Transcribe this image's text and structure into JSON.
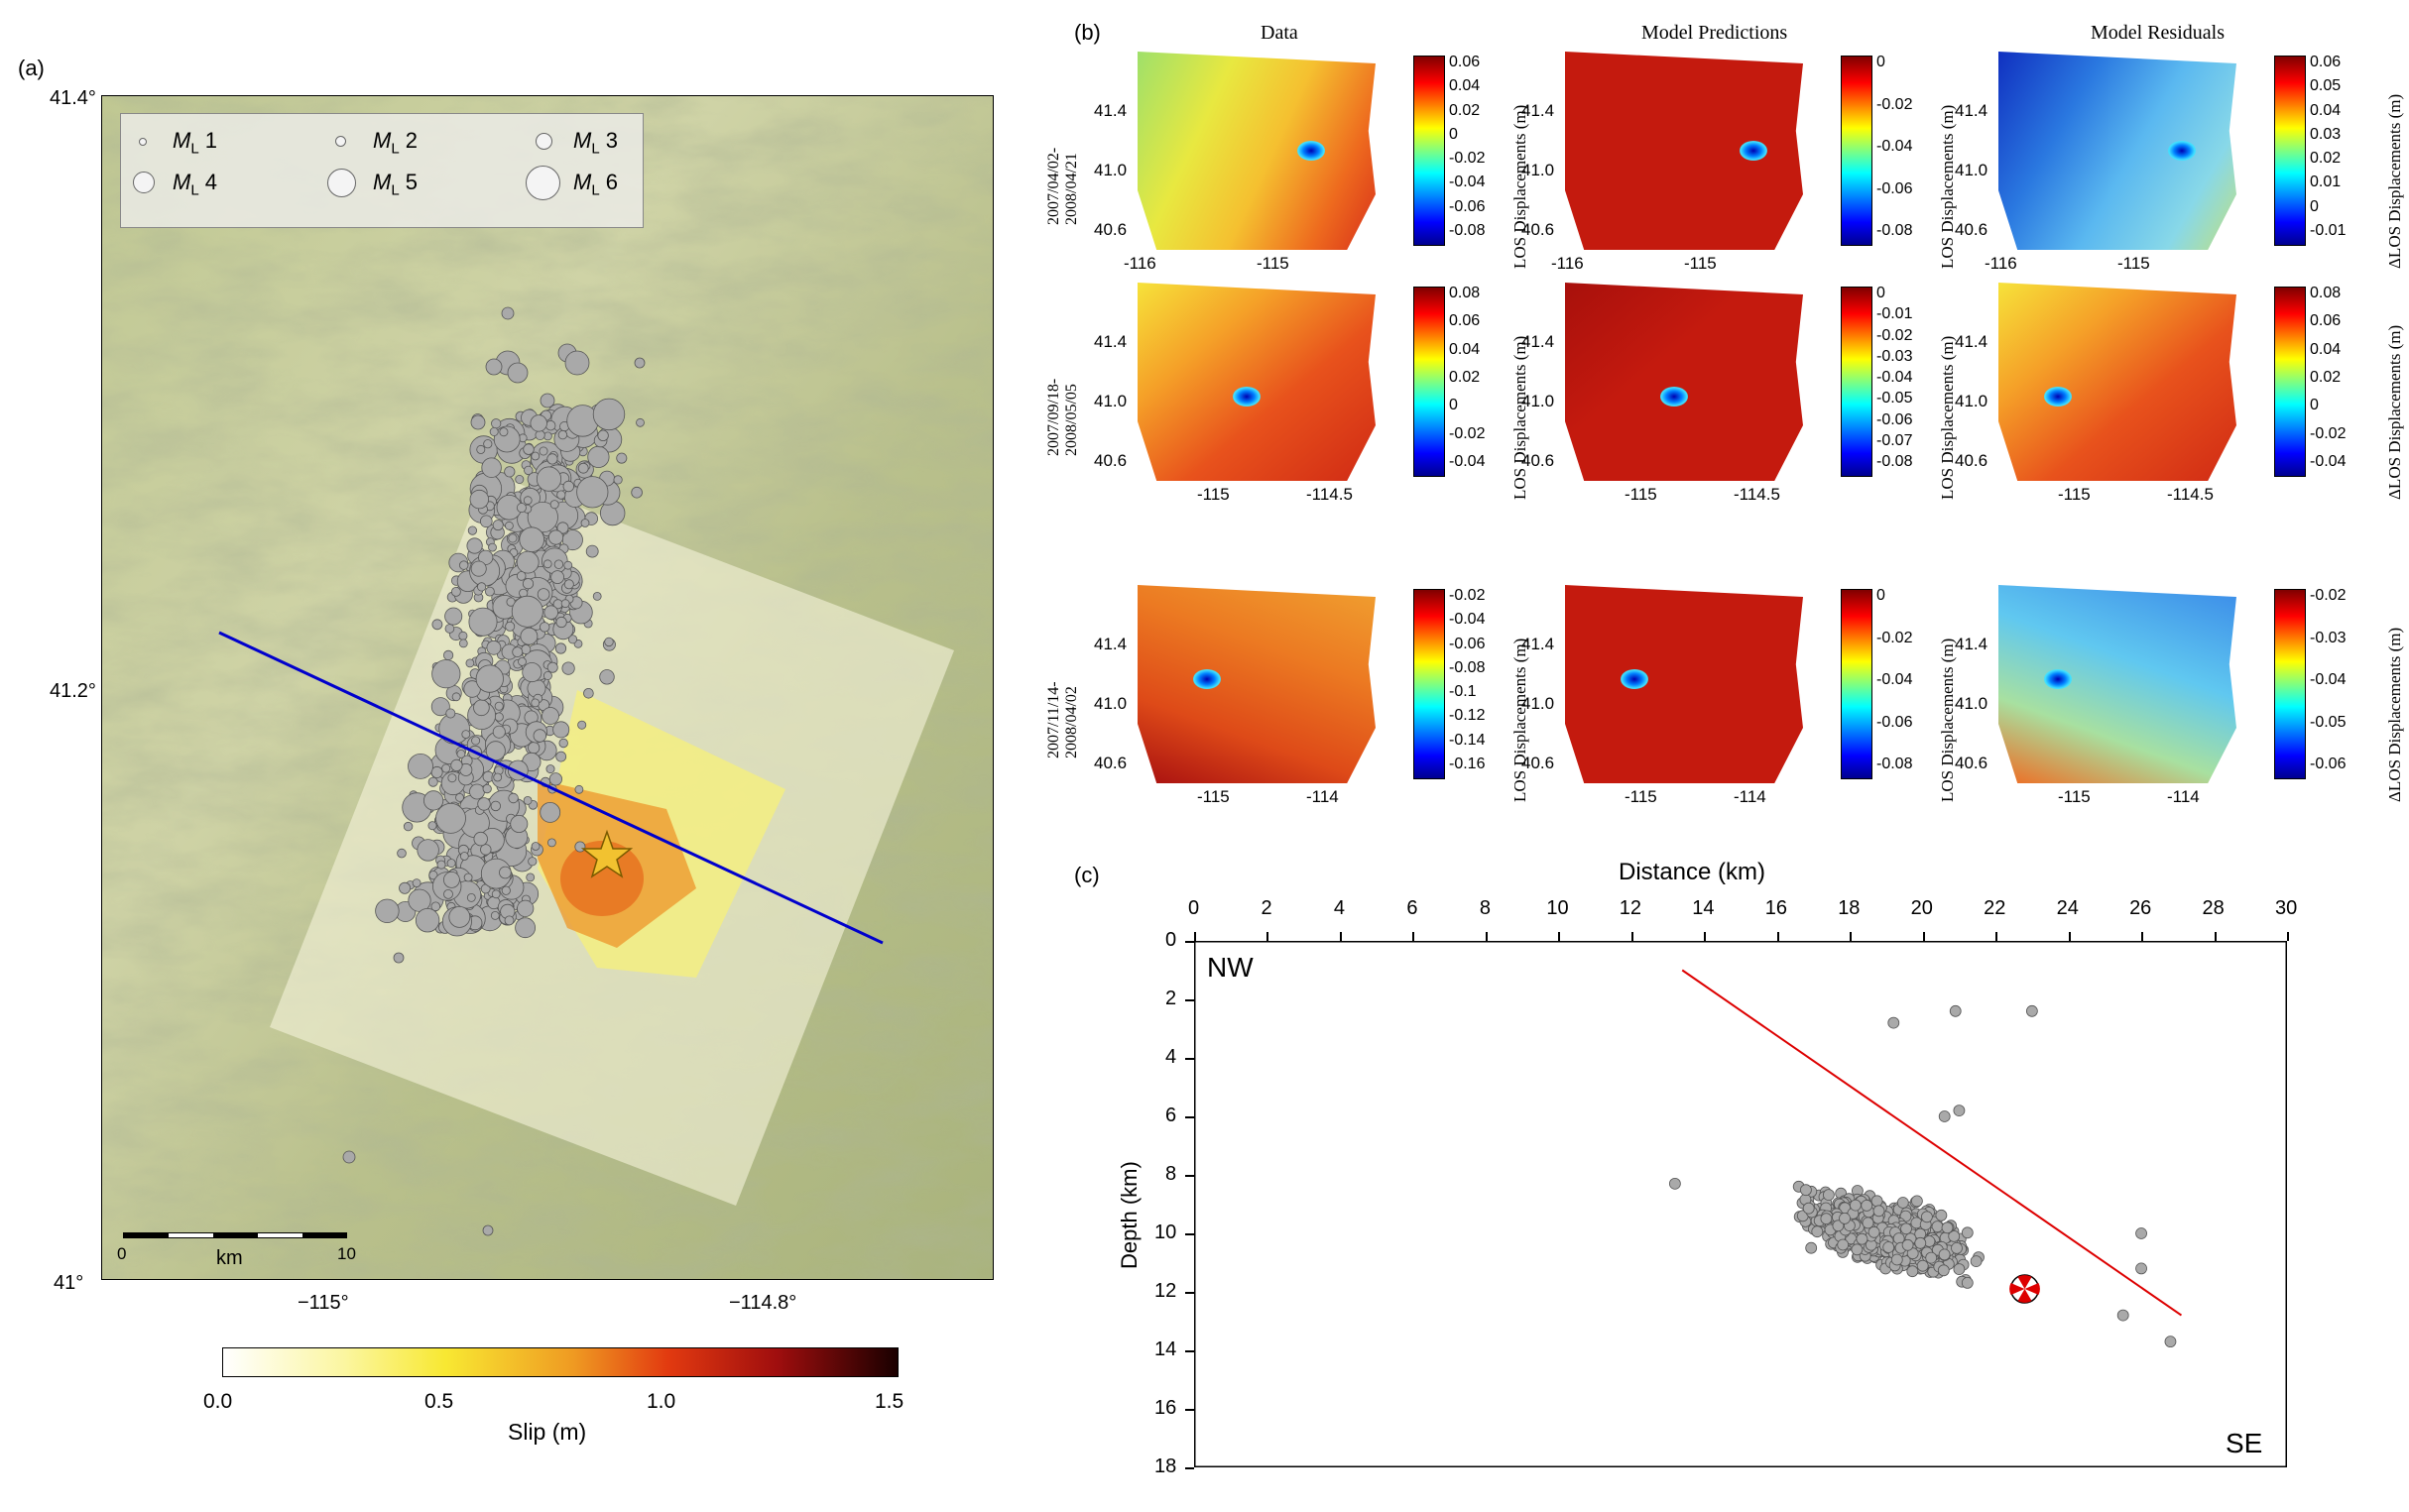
{
  "panel_a": {
    "label": "(a)",
    "lat_ticks": [
      "41.4°",
      "41.2°",
      "41°"
    ],
    "lon_ticks": [
      "−115°",
      "−114.8°"
    ],
    "legend": [
      "1",
      "2",
      "3",
      "4",
      "5",
      "6"
    ],
    "legend_prefix": "M",
    "legend_sub": "L",
    "scalebar": {
      "start": "0",
      "unit": "km",
      "end": "10"
    },
    "colorbar": {
      "title": "Slip (m)",
      "ticks": [
        "0.0",
        "0.5",
        "1.0",
        "1.5"
      ]
    }
  },
  "panel_b": {
    "label": "(b)",
    "column_titles": [
      "Data",
      "Model Predictions",
      "Model Residuals"
    ],
    "row_dates": [
      [
        "2007/04/02-",
        "2008/04/21"
      ],
      [
        "2007/09/18-",
        "2008/05/05"
      ],
      [
        "2007/11/14-",
        "2008/04/02"
      ]
    ],
    "ylab_los": "LOS Displacements (m)",
    "ylab_dlos": "ΔLOS Displacements (m)",
    "lat_ticks": [
      "41.4",
      "41.0",
      "40.6"
    ],
    "x_ticks_rows": [
      [
        "-116",
        "-115"
      ],
      [
        "-115",
        "-114.5"
      ],
      [
        "-115",
        "-114"
      ]
    ],
    "colorbars": [
      [
        [
          "0.06",
          "0.04",
          "0.02",
          "0",
          "-0.02",
          "-0.04",
          "-0.06",
          "-0.08"
        ],
        [
          "0",
          "-0.02",
          "-0.04",
          "-0.06",
          "-0.08"
        ],
        [
          "0.06",
          "0.05",
          "0.04",
          "0.03",
          "0.02",
          "0.01",
          "0",
          "-0.01"
        ]
      ],
      [
        [
          "0.08",
          "0.06",
          "0.04",
          "0.02",
          "0",
          "-0.02",
          "-0.04"
        ],
        [
          "0",
          "-0.01",
          "-0.02",
          "-0.03",
          "-0.04",
          "-0.05",
          "-0.06",
          "-0.07",
          "-0.08"
        ],
        [
          "0.08",
          "0.06",
          "0.04",
          "0.02",
          "0",
          "-0.02",
          "-0.04"
        ]
      ],
      [
        [
          "-0.02",
          "-0.04",
          "-0.06",
          "-0.08",
          "-0.1",
          "-0.12",
          "-0.14",
          "-0.16"
        ],
        [
          "0",
          "-0.02",
          "-0.04",
          "-0.06",
          "-0.08"
        ],
        [
          "-0.02",
          "-0.03",
          "-0.04",
          "-0.05",
          "-0.06"
        ]
      ]
    ]
  },
  "panel_c": {
    "label": "(c)",
    "xlabel": "Distance (km)",
    "ylabel": "Depth (km)",
    "x_ticks": [
      "0",
      "2",
      "4",
      "6",
      "8",
      "10",
      "12",
      "14",
      "16",
      "18",
      "20",
      "22",
      "24",
      "26",
      "28",
      "30"
    ],
    "y_ticks": [
      "0",
      "2",
      "4",
      "6",
      "8",
      "10",
      "12",
      "14",
      "16",
      "18"
    ],
    "nw": "NW",
    "se": "SE"
  },
  "colors": {
    "fault_line": "#0000cc",
    "profile_line": "#dd0000",
    "event": "#a9a9a9"
  }
}
